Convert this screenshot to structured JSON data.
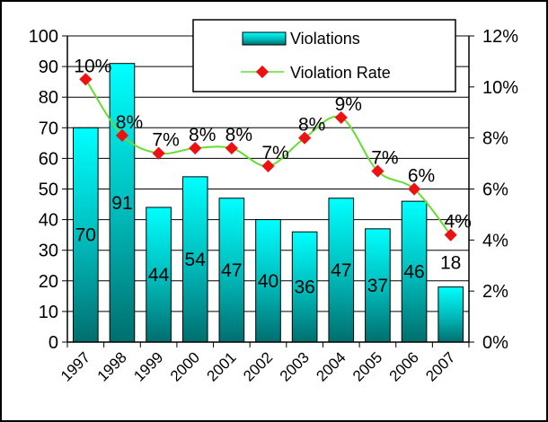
{
  "chart_data": {
    "type": "bar",
    "categories": [
      "1997",
      "1998",
      "1999",
      "2000",
      "2001",
      "2002",
      "2003",
      "2004",
      "2005",
      "2006",
      "2007"
    ],
    "series": [
      {
        "name": "Violations",
        "kind": "bar",
        "axis": "left",
        "color": "#00bcbc",
        "values": [
          70,
          91,
          44,
          54,
          47,
          40,
          36,
          47,
          37,
          46,
          18
        ],
        "labels": [
          "70",
          "91",
          "44",
          "54",
          "47",
          "40",
          "36",
          "47",
          "37",
          "46",
          "18"
        ]
      },
      {
        "name": "Violation Rate",
        "kind": "line",
        "axis": "right",
        "color": "#66dd33",
        "marker_color": "#ee1111",
        "values": [
          0.103,
          0.081,
          0.074,
          0.076,
          0.076,
          0.069,
          0.08,
          0.088,
          0.067,
          0.06,
          0.042
        ],
        "labels": [
          "10%",
          "8%",
          "7%",
          "8%",
          "8%",
          "7%",
          "8%",
          "9%",
          "7%",
          "6%",
          "4%"
        ]
      }
    ],
    "y_left": {
      "min": 0,
      "max": 100,
      "step": 10,
      "ticks": [
        "0",
        "10",
        "20",
        "30",
        "40",
        "50",
        "60",
        "70",
        "80",
        "90",
        "100"
      ]
    },
    "y_right": {
      "min": 0,
      "max": 0.12,
      "step": 0.02,
      "ticks": [
        "0%",
        "2%",
        "4%",
        "6%",
        "8%",
        "10%",
        "12%"
      ]
    },
    "grid": "horizontal",
    "legend_position": "top-right",
    "title": "",
    "xlabel": "",
    "ylabel": ""
  }
}
